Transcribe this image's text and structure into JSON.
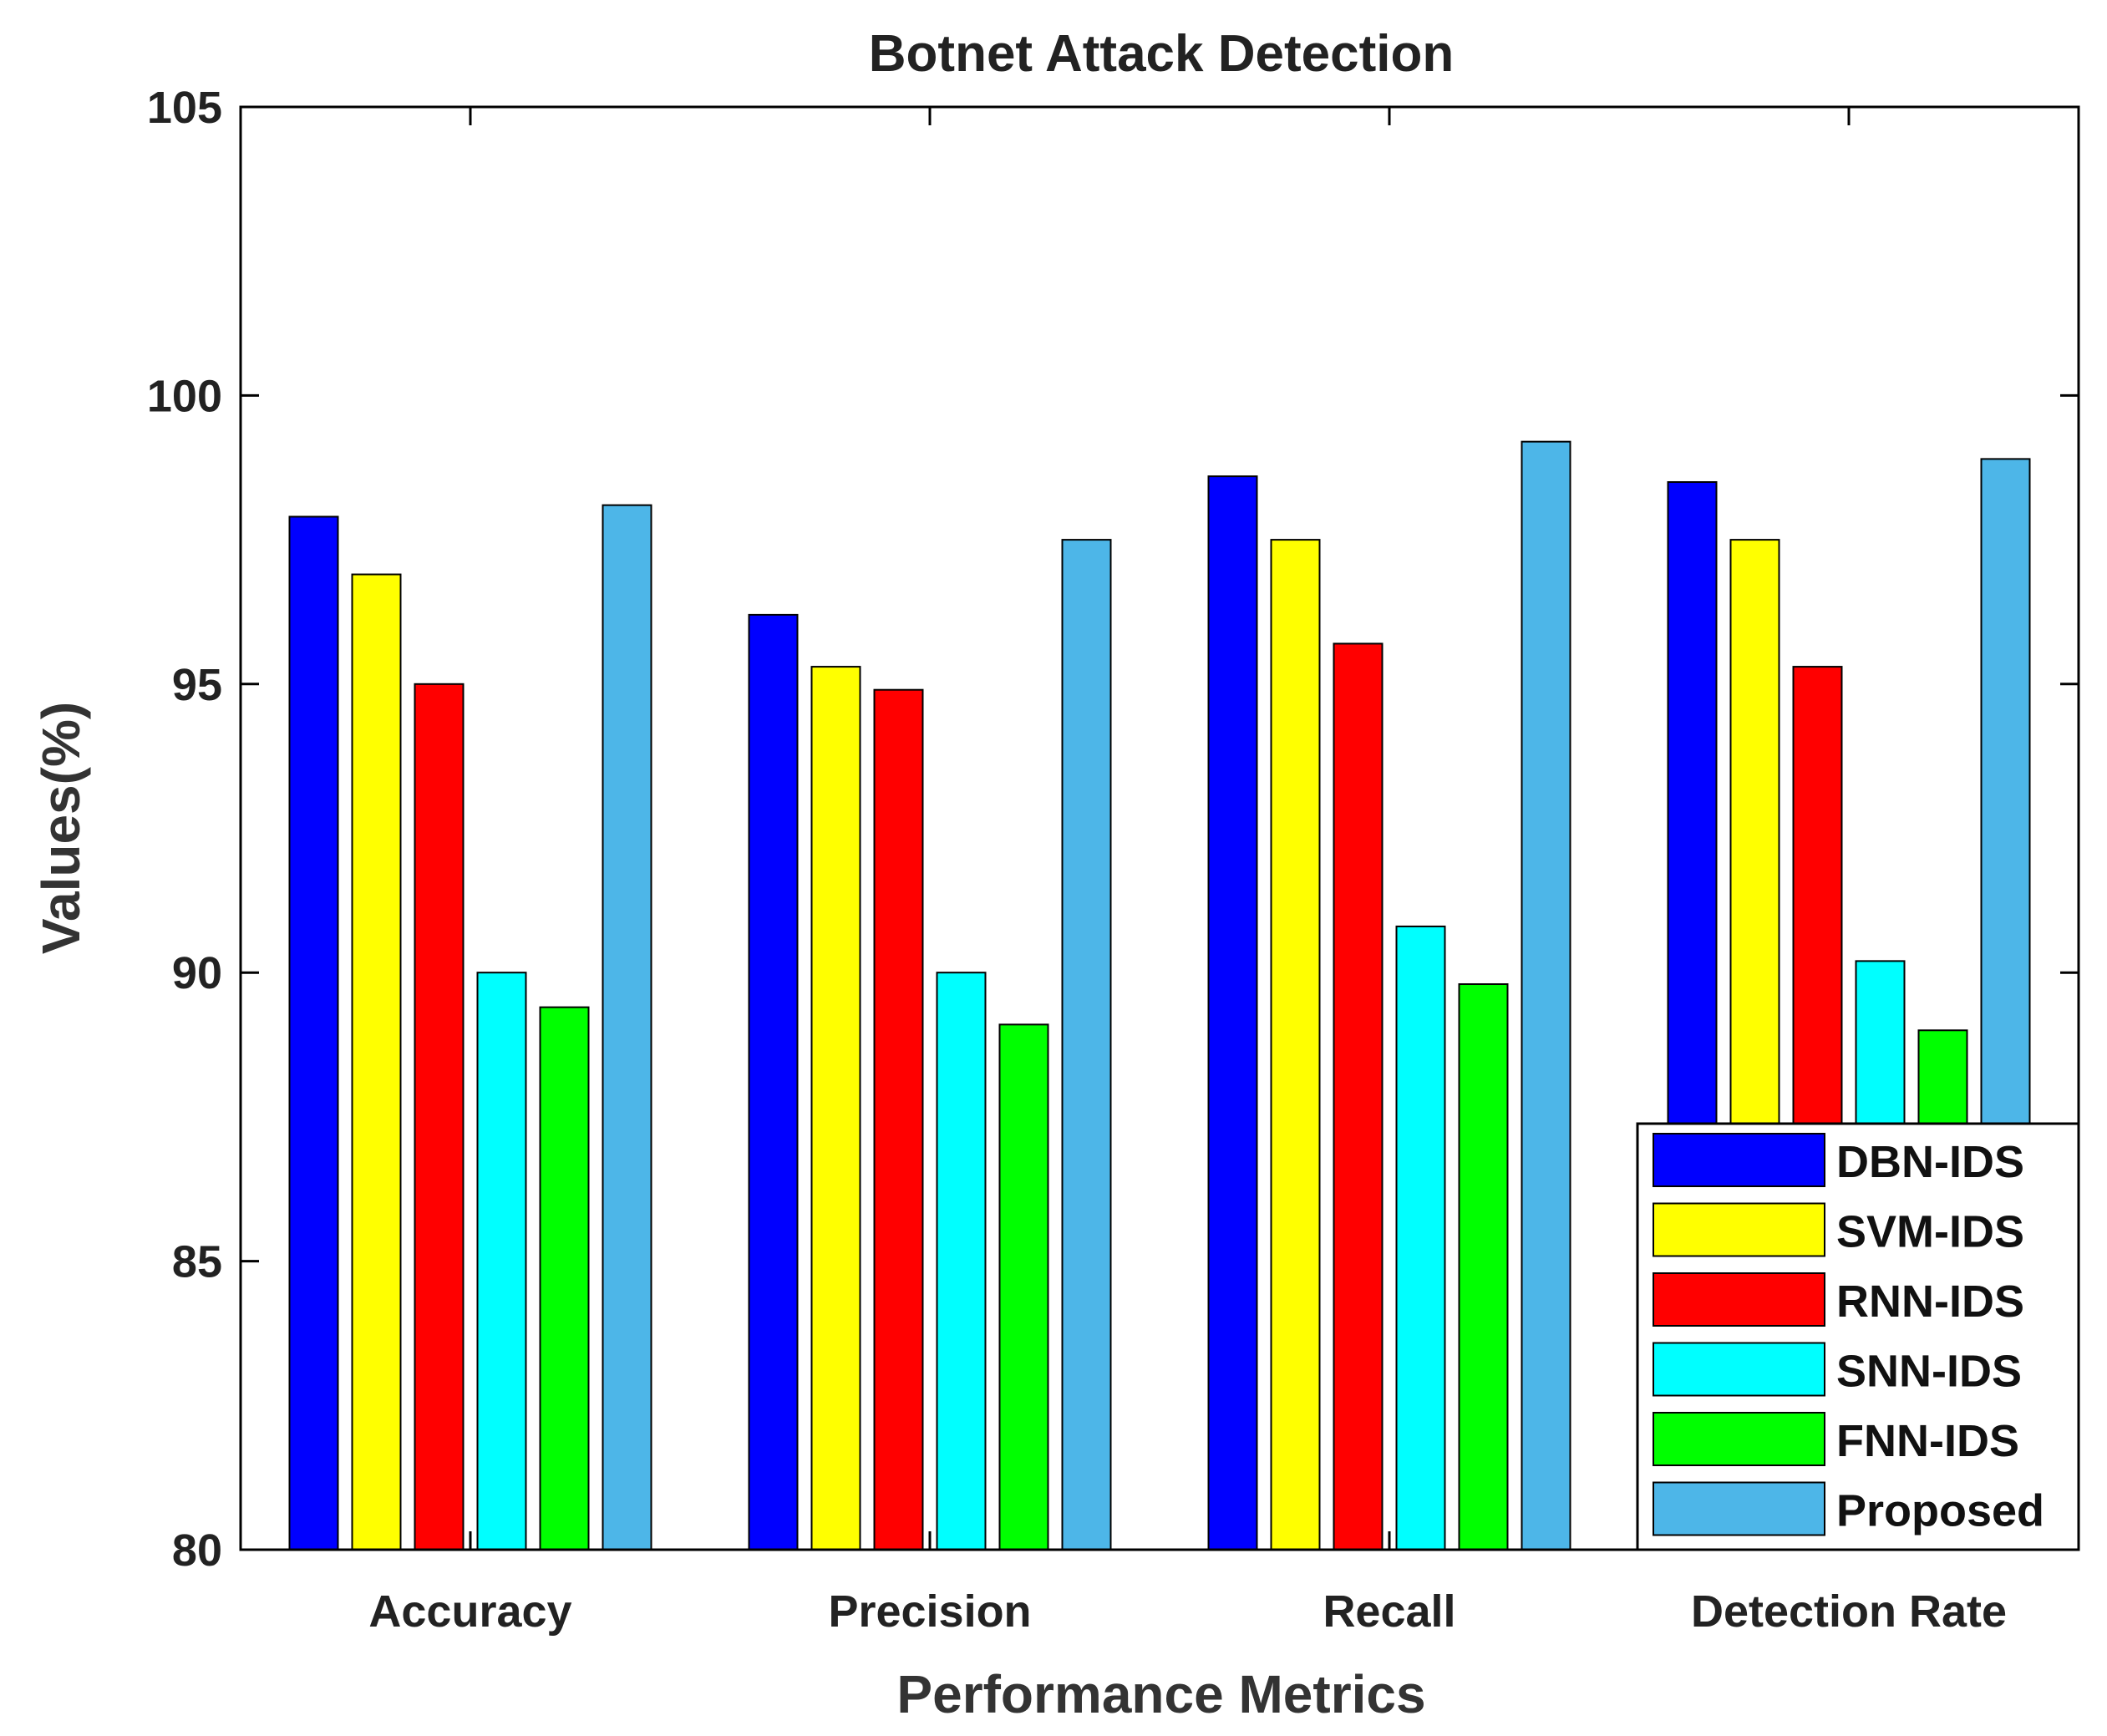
{
  "chart_data": {
    "type": "bar",
    "title": "Botnet Attack Detection",
    "xlabel": "Performance Metrics",
    "ylabel": "Values(%)",
    "ylim": [
      80,
      105
    ],
    "yticks": [
      "80",
      "85",
      "90",
      "95",
      "100",
      "105"
    ],
    "categories": [
      "Accuracy",
      "Precision",
      "Recall",
      "Detection Rate"
    ],
    "series": [
      {
        "name": "DBN-IDS",
        "color": "#0000ff",
        "values": [
          97.9,
          96.2,
          98.6,
          98.5
        ]
      },
      {
        "name": "SVM-IDS",
        "color": "#ffff00",
        "values": [
          96.9,
          95.3,
          97.5,
          97.5
        ]
      },
      {
        "name": "RNN-IDS",
        "color": "#ff0000",
        "values": [
          95.0,
          94.9,
          95.7,
          95.3
        ]
      },
      {
        "name": "SNN-IDS",
        "color": "#00ffff",
        "values": [
          90.0,
          90.0,
          90.8,
          90.2
        ]
      },
      {
        "name": "FNN-IDS",
        "color": "#00ff00",
        "values": [
          89.4,
          89.1,
          89.8,
          89.0
        ]
      },
      {
        "name": "Proposed",
        "color": "#4db6e8",
        "values": [
          98.1,
          97.5,
          99.2,
          98.9
        ]
      }
    ],
    "legend_position": "bottom-right",
    "grid": false
  }
}
